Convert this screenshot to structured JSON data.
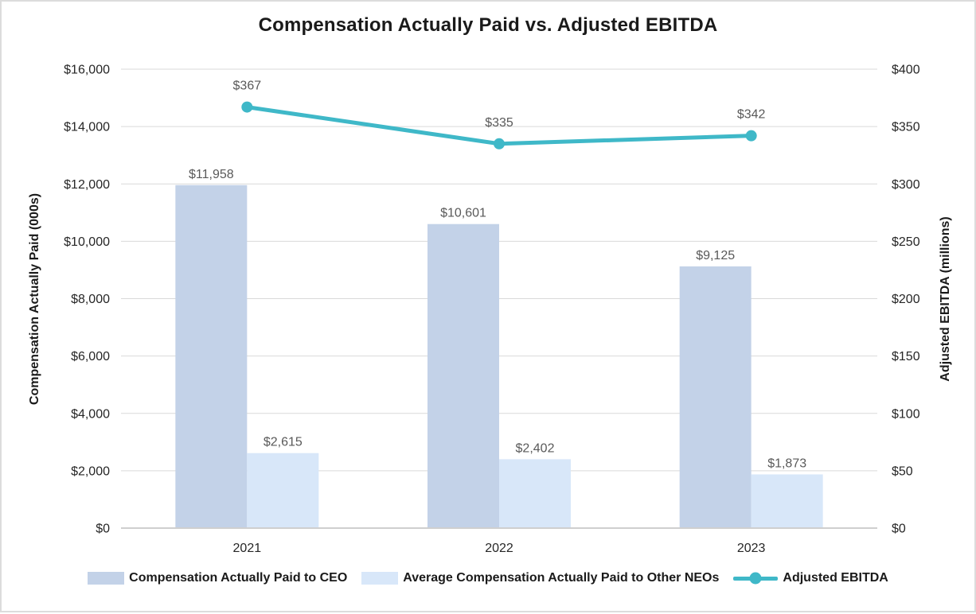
{
  "chart_data": {
    "type": "bar",
    "subtype": "combo-clustered-bar-with-line",
    "title": "Compensation Actually Paid vs. Adjusted EBITDA",
    "categories": [
      "2021",
      "2022",
      "2023"
    ],
    "series": [
      {
        "name": "Compensation Actually Paid to CEO",
        "render": "bar",
        "axis": "left",
        "color": "#c3d2e8",
        "values": [
          11958,
          10601,
          9125
        ],
        "labels": [
          "$11,958",
          "$10,601",
          "$9,125"
        ]
      },
      {
        "name": "Average Compensation Actually Paid to Other NEOs",
        "render": "bar",
        "axis": "left",
        "color": "#d8e7f9",
        "values": [
          2615,
          2402,
          1873
        ],
        "labels": [
          "$2,615",
          "$2,402",
          "$1,873"
        ]
      },
      {
        "name": "Adjusted EBITDA",
        "render": "line",
        "axis": "right",
        "color": "#3fb8c8",
        "values": [
          367,
          335,
          342
        ],
        "labels": [
          "$367",
          "$335",
          "$342"
        ]
      }
    ],
    "left_axis": {
      "label": "Compensation Actually Paid (000s)",
      "min": 0,
      "max": 16000,
      "step": 2000,
      "ticks": [
        "$0",
        "$2,000",
        "$4,000",
        "$6,000",
        "$8,000",
        "$10,000",
        "$12,000",
        "$14,000",
        "$16,000"
      ]
    },
    "right_axis": {
      "label": "Adjusted EBITDA (millions)",
      "min": 0,
      "max": 400,
      "step": 50,
      "ticks": [
        "$0",
        "$50",
        "$100",
        "$150",
        "$200",
        "$250",
        "$300",
        "$350",
        "$400"
      ]
    },
    "grid": true,
    "legend_position": "bottom",
    "colors": {
      "gridline": "#d9d9d9",
      "baseline": "#cfcfcf",
      "data_label": "#595959",
      "tick_label": "#262626"
    }
  }
}
